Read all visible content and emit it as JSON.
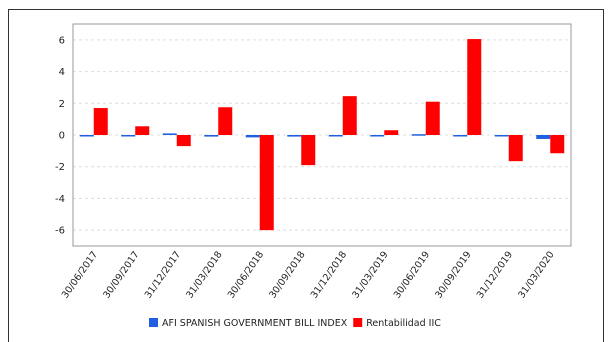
{
  "chart_data": {
    "type": "bar",
    "title": "",
    "xlabel": "",
    "ylabel": "",
    "ylim": [
      -7,
      7
    ],
    "yticks": [
      -6,
      -4,
      -2,
      0,
      2,
      4,
      6
    ],
    "grid": true,
    "legend_position": "bottom",
    "categories": [
      "30/06/2017",
      "30/09/2017",
      "31/12/2017",
      "31/03/2018",
      "30/06/2018",
      "30/09/2018",
      "31/12/2018",
      "31/03/2019",
      "30/06/2019",
      "30/09/2019",
      "31/12/2019",
      "31/03/2020"
    ],
    "series": [
      {
        "name": "AFI SPANISH GOVERNMENT BILL INDEX",
        "color": "#1f5fe0",
        "values": [
          -0.05,
          -0.05,
          0.1,
          -0.1,
          -0.15,
          -0.1,
          -0.05,
          -0.05,
          0.05,
          -0.05,
          -0.05,
          -0.25
        ]
      },
      {
        "name": "Rentabilidad IIC",
        "color": "#ff0000",
        "values": [
          1.7,
          0.55,
          -0.7,
          1.75,
          -6.0,
          -1.9,
          2.45,
          0.3,
          2.1,
          6.05,
          -1.65,
          -1.15
        ]
      }
    ]
  }
}
